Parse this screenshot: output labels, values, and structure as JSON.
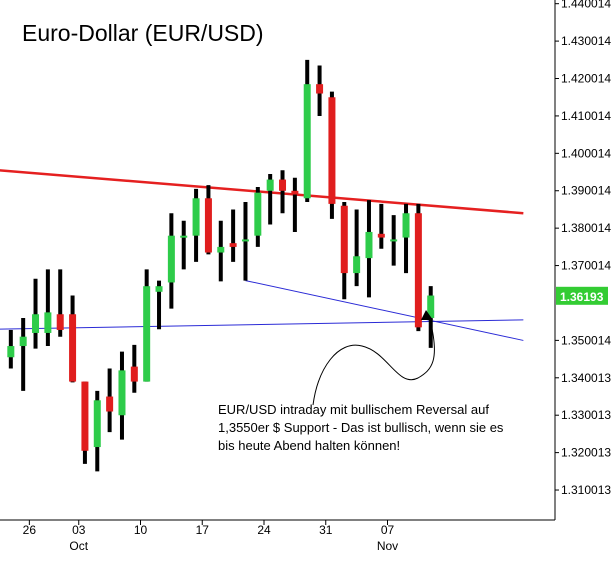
{
  "chart_data": {
    "type": "candlestick",
    "title": "Euro-Dollar (EUR/USD)",
    "ylim": [
      1.302,
      1.441
    ],
    "yticks": [
      "1.440014",
      "1.430014",
      "1.420014",
      "1.410014",
      "1.400014",
      "1.390014",
      "1.380014",
      "1.370014",
      "1.350014",
      "1.340013",
      "1.330013",
      "1.320013",
      "1.310013"
    ],
    "ytick_values": [
      1.440014,
      1.430014,
      1.420014,
      1.410014,
      1.400014,
      1.390014,
      1.380014,
      1.370014,
      1.350014,
      1.340013,
      1.330013,
      1.320013,
      1.310013
    ],
    "xticks": [
      {
        "label": "26",
        "sub": "",
        "index": 1
      },
      {
        "label": "03",
        "sub": "Oct",
        "index": 5
      },
      {
        "label": "10",
        "sub": "",
        "index": 10
      },
      {
        "label": "17",
        "sub": "",
        "index": 15
      },
      {
        "label": "24",
        "sub": "",
        "index": 20
      },
      {
        "label": "31",
        "sub": "",
        "index": 25
      },
      {
        "label": "07",
        "sub": "Nov",
        "index": 30
      }
    ],
    "last_price": "1.36193",
    "candles": [
      {
        "i": -0.5,
        "o": 1.3455,
        "h": 1.3528,
        "l": 1.3425,
        "c": 1.3485
      },
      {
        "i": 0.5,
        "o": 1.3485,
        "h": 1.356,
        "l": 1.3365,
        "c": 1.351
      },
      {
        "i": 1.5,
        "o": 1.352,
        "h": 1.3665,
        "l": 1.3478,
        "c": 1.357
      },
      {
        "i": 2.5,
        "o": 1.352,
        "h": 1.369,
        "l": 1.3485,
        "c": 1.3575
      },
      {
        "i": 3.5,
        "o": 1.357,
        "h": 1.369,
        "l": 1.351,
        "c": 1.3528
      },
      {
        "i": 4.5,
        "o": 1.357,
        "h": 1.362,
        "l": 1.3388,
        "c": 1.339
      },
      {
        "i": 5.5,
        "o": 1.339,
        "h": 1.339,
        "l": 1.317,
        "c": 1.3205
      },
      {
        "i": 6.5,
        "o": 1.3215,
        "h": 1.3365,
        "l": 1.315,
        "c": 1.334
      },
      {
        "i": 7.5,
        "o": 1.335,
        "h": 1.3425,
        "l": 1.3255,
        "c": 1.331
      },
      {
        "i": 8.5,
        "o": 1.33,
        "h": 1.347,
        "l": 1.3235,
        "c": 1.342
      },
      {
        "i": 9.5,
        "o": 1.343,
        "h": 1.3488,
        "l": 1.336,
        "c": 1.339
      },
      {
        "i": 10.5,
        "o": 1.339,
        "h": 1.369,
        "l": 1.339,
        "c": 1.3645
      },
      {
        "i": 11.5,
        "o": 1.363,
        "h": 1.366,
        "l": 1.353,
        "c": 1.3645
      },
      {
        "i": 12.5,
        "o": 1.3655,
        "h": 1.384,
        "l": 1.3585,
        "c": 1.378
      },
      {
        "i": 13.5,
        "o": 1.378,
        "h": 1.382,
        "l": 1.369,
        "c": 1.378
      },
      {
        "i": 14.5,
        "o": 1.378,
        "h": 1.3905,
        "l": 1.371,
        "c": 1.388
      },
      {
        "i": 15.5,
        "o": 1.388,
        "h": 1.3915,
        "l": 1.373,
        "c": 1.3735
      },
      {
        "i": 16.5,
        "o": 1.3735,
        "h": 1.382,
        "l": 1.3658,
        "c": 1.375
      },
      {
        "i": 17.5,
        "o": 1.376,
        "h": 1.385,
        "l": 1.371,
        "c": 1.375
      },
      {
        "i": 18.5,
        "o": 1.3765,
        "h": 1.387,
        "l": 1.366,
        "c": 1.377
      },
      {
        "i": 19.5,
        "o": 1.378,
        "h": 1.391,
        "l": 1.375,
        "c": 1.3895
      },
      {
        "i": 20.5,
        "o": 1.39,
        "h": 1.3945,
        "l": 1.381,
        "c": 1.393
      },
      {
        "i": 21.5,
        "o": 1.393,
        "h": 1.3955,
        "l": 1.384,
        "c": 1.39
      },
      {
        "i": 22.5,
        "o": 1.39,
        "h": 1.3935,
        "l": 1.379,
        "c": 1.389
      },
      {
        "i": 23.5,
        "o": 1.388,
        "h": 1.425,
        "l": 1.387,
        "c": 1.4185
      },
      {
        "i": 24.5,
        "o": 1.4185,
        "h": 1.4235,
        "l": 1.41,
        "c": 1.416
      },
      {
        "i": 25.5,
        "o": 1.415,
        "h": 1.4165,
        "l": 1.3825,
        "c": 1.3865
      },
      {
        "i": 26.5,
        "o": 1.386,
        "h": 1.387,
        "l": 1.361,
        "c": 1.368
      },
      {
        "i": 27.5,
        "o": 1.368,
        "h": 1.385,
        "l": 1.3645,
        "c": 1.3725
      },
      {
        "i": 28.5,
        "o": 1.372,
        "h": 1.3875,
        "l": 1.3615,
        "c": 1.379
      },
      {
        "i": 29.5,
        "o": 1.3785,
        "h": 1.3865,
        "l": 1.3745,
        "c": 1.3775
      },
      {
        "i": 30.5,
        "o": 1.377,
        "h": 1.3835,
        "l": 1.37,
        "c": 1.377
      },
      {
        "i": 31.5,
        "o": 1.3775,
        "h": 1.3865,
        "l": 1.368,
        "c": 1.384
      },
      {
        "i": 32.5,
        "o": 1.384,
        "h": 1.3865,
        "l": 1.3525,
        "c": 1.3535
      },
      {
        "i": 33.5,
        "o": 1.356,
        "h": 1.3645,
        "l": 1.348,
        "c": 1.362
      }
    ],
    "lines": [
      {
        "name": "downtrend",
        "color": "#e52020",
        "from": {
          "i": -1.5,
          "v": 1.3955
        },
        "to": {
          "i": 41.0,
          "v": 1.384
        }
      },
      {
        "name": "support",
        "color": "#2b2bd6",
        "from": {
          "i": -1.5,
          "v": 1.353
        },
        "to": {
          "i": 41.0,
          "v": 1.3555
        }
      },
      {
        "name": "lower-channel",
        "color": "#2b2bd6",
        "from": {
          "i": 18.5,
          "v": 1.366
        },
        "to": {
          "i": 41.0,
          "v": 1.35
        }
      }
    ],
    "annotation": "EUR/USD intraday mit bullischem Reversal auf 1,3550er $ Support - Das ist bullisch, wenn sie es bis heute Abend halten können!",
    "colors": {
      "up": "#2ecc4a",
      "down": "#e01e1e",
      "wick": "#000000",
      "price_tag": "#33cc33"
    }
  }
}
